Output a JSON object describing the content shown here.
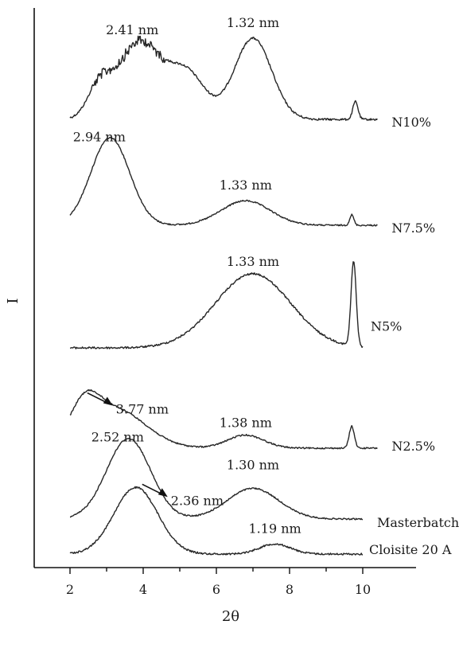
{
  "chart_data": {
    "type": "line",
    "xlabel": "2θ",
    "ylabel": "I",
    "xlim": [
      1,
      11.5
    ],
    "xticks": [
      2,
      4,
      6,
      8,
      10
    ],
    "grid": false,
    "legend": "none",
    "y_axis_ticks": false,
    "series": [
      {
        "name": "N10%",
        "x_range": [
          2.0,
          10.4
        ],
        "peaks": [
          {
            "x": 3.9,
            "h": 0.95,
            "w": 0.85
          },
          {
            "x": 2.8,
            "h": 0.35,
            "w": 0.45
          },
          {
            "x": 5.2,
            "h": 0.55,
            "w": 0.7
          },
          {
            "x": 7.0,
            "h": 1.0,
            "w": 0.72
          },
          {
            "x": 9.8,
            "h": 0.22,
            "w": 0.1
          }
        ],
        "noisy_range": [
          2.6,
          4.6
        ],
        "labels": [
          {
            "text": "2.41 nm",
            "x": 3.7
          },
          {
            "text": "1.32 nm",
            "x": 7.0
          }
        ]
      },
      {
        "name": "N7.5%",
        "x_range": [
          2.0,
          10.4
        ],
        "peaks": [
          {
            "x": 3.1,
            "h": 1.0,
            "w": 0.75
          },
          {
            "x": 6.8,
            "h": 0.28,
            "w": 0.95
          },
          {
            "x": 9.7,
            "h": 0.12,
            "w": 0.08
          }
        ],
        "labels": [
          {
            "text": "2.94 nm",
            "x": 2.8
          },
          {
            "text": "1.33 nm",
            "x": 6.8
          }
        ]
      },
      {
        "name": "N5%",
        "x_range": [
          2.0,
          10.0
        ],
        "peaks": [
          {
            "x": 7.0,
            "h": 0.7,
            "w": 1.45
          },
          {
            "x": 9.75,
            "h": 0.8,
            "w": 0.1
          }
        ],
        "labels": [
          {
            "text": "1.33 nm",
            "x": 7.0
          }
        ]
      },
      {
        "name": "N2.5%",
        "x_range": [
          2.0,
          10.4
        ],
        "peaks": [
          {
            "x": 2.4,
            "h": 0.35,
            "w": 0.55
          },
          {
            "x": 3.2,
            "h": 0.45,
            "w": 1.2
          },
          {
            "x": 6.8,
            "h": 0.15,
            "w": 0.7
          },
          {
            "x": 9.7,
            "h": 0.25,
            "w": 0.1
          }
        ],
        "labels": [
          {
            "text": "3.77 nm",
            "x": 2.3,
            "arrow": true
          },
          {
            "text": "1.38 nm",
            "x": 6.8
          }
        ]
      },
      {
        "name": "Masterbatch",
        "x_range": [
          2.0,
          10.0
        ],
        "peaks": [
          {
            "x": 3.6,
            "h": 0.92,
            "w": 0.85
          },
          {
            "x": 7.0,
            "h": 0.35,
            "w": 1.0
          }
        ],
        "labels": [
          {
            "text": "2.52 nm",
            "x": 3.3
          },
          {
            "text": "1.30 nm",
            "x": 7.0
          }
        ]
      },
      {
        "name": "Cloisite 20 A",
        "x_range": [
          2.0,
          10.0
        ],
        "peaks": [
          {
            "x": 3.8,
            "h": 0.92,
            "w": 0.85
          },
          {
            "x": 7.6,
            "h": 0.14,
            "w": 0.6
          }
        ],
        "labels": [
          {
            "text": "2.36 nm",
            "x": 3.8,
            "arrow": true
          },
          {
            "text": "1.19 nm",
            "x": 7.6
          }
        ]
      }
    ]
  }
}
